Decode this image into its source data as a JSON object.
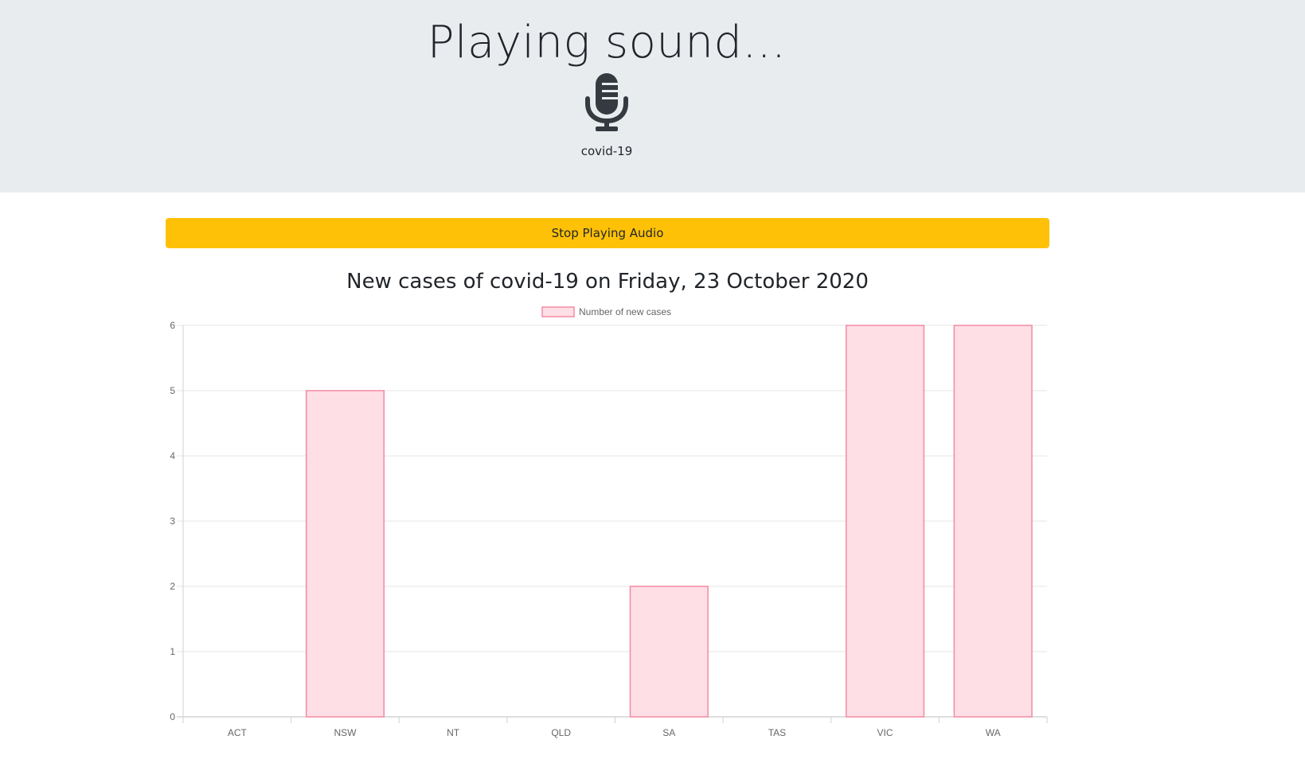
{
  "header": {
    "title": "Playing sound...",
    "topic": "covid-19",
    "mic_icon": "microphone-icon"
  },
  "controls": {
    "stop_label": "Stop Playing Audio"
  },
  "colors": {
    "jumbotron_bg": "#e9ecef",
    "button_bg": "#ffc107",
    "bar_fill": "#ffdfe6",
    "bar_border": "#f38aa4",
    "grid": "#e5e5e5",
    "tick_text": "#666666"
  },
  "chart_data": {
    "type": "bar",
    "title": "New cases of covid-19 on Friday, 23 October 2020",
    "categories": [
      "ACT",
      "NSW",
      "NT",
      "QLD",
      "SA",
      "TAS",
      "VIC",
      "WA"
    ],
    "series": [
      {
        "name": "Number of new cases",
        "values": [
          0,
          5,
          0,
          0,
          2,
          0,
          6,
          6
        ]
      }
    ],
    "yticks": [
      0,
      1,
      2,
      3,
      4,
      5,
      6
    ],
    "ylim": [
      0,
      6
    ],
    "xlabel": "",
    "ylabel": "",
    "legend": "top-center",
    "grid": true
  }
}
